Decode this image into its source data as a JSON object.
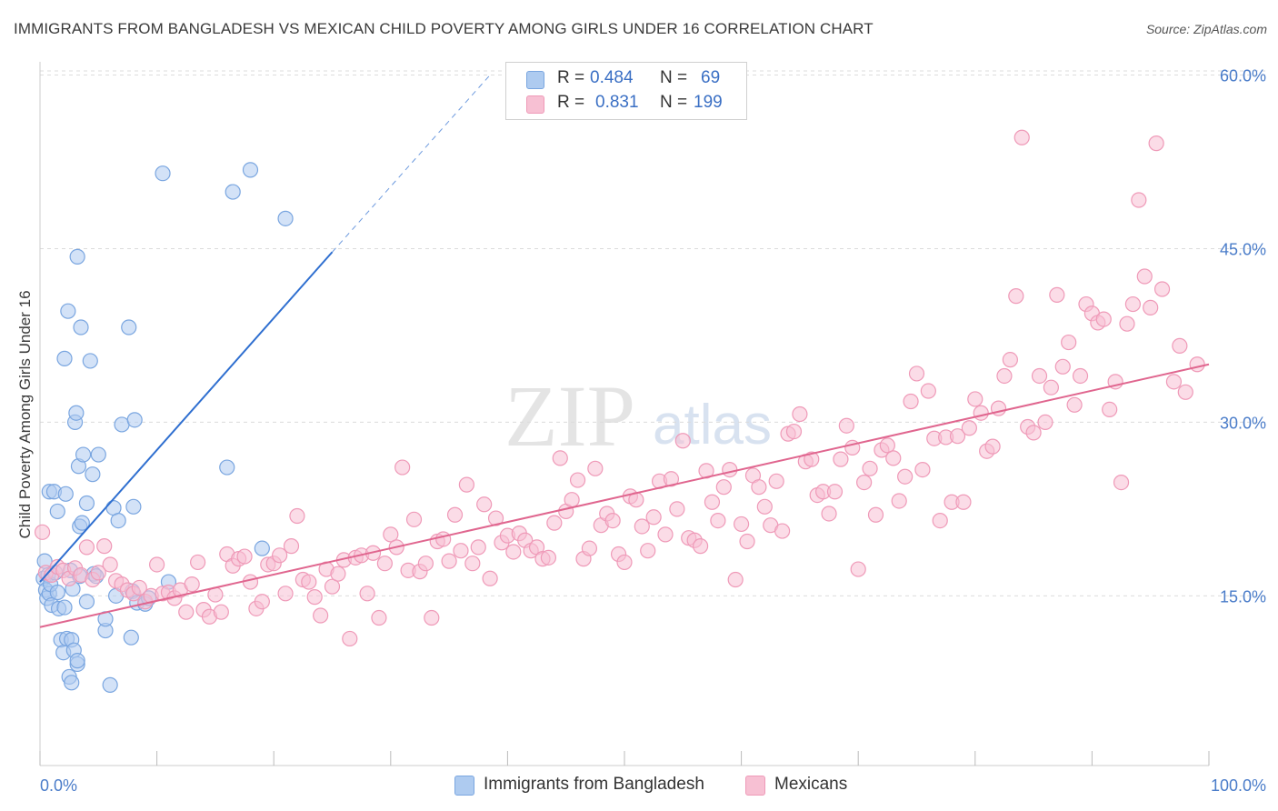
{
  "title": "IMMIGRANTS FROM BANGLADESH VS MEXICAN CHILD POVERTY AMONG GIRLS UNDER 16 CORRELATION CHART",
  "source": "Source: ZipAtlas.com",
  "watermark": {
    "zip": "ZIP",
    "atlas": "atlas"
  },
  "legend": {
    "rows": [
      {
        "r_label": "R =",
        "r_value": "0.484",
        "n_label": "N =",
        "n_value": "69"
      },
      {
        "r_label": "R =",
        "r_value": "0.831",
        "n_label": "N =",
        "n_value": "199"
      }
    ]
  },
  "bottom_legend": [
    {
      "label": "Immigrants from Bangladesh"
    },
    {
      "label": "Mexicans"
    }
  ],
  "colors": {
    "blue_fill": "#aecbf0",
    "blue_stroke": "#7aa6e0",
    "blue_line": "#2f6fd0",
    "pink_fill": "#f7c0d3",
    "pink_stroke": "#ef9ab8",
    "pink_line": "#e0668f",
    "grid": "#dcdcdc",
    "axis_text": "#4a7cc9"
  },
  "chart_data": {
    "type": "scatter",
    "title": "IMMIGRANTS FROM BANGLADESH VS MEXICAN CHILD POVERTY AMONG GIRLS UNDER 16 CORRELATION CHART",
    "xlabel": "",
    "ylabel": "Child Poverty Among Girls Under 16",
    "xlim": [
      0,
      100
    ],
    "ylim": [
      0,
      63
    ],
    "x_tick_labels": [
      "0.0%",
      "100.0%"
    ],
    "y_ticks": [
      15,
      30,
      45,
      60
    ],
    "y_tick_labels": [
      "15.0%",
      "30.0%",
      "45.0%",
      "60.0%"
    ],
    "grid": true,
    "legend_position": "top-center",
    "series": [
      {
        "name": "Immigrants from Bangladesh",
        "r": 0.484,
        "n": 69,
        "trend": {
          "x": [
            0,
            25
          ],
          "y": [
            16.2,
            44.7
          ],
          "extended_to": [
            38.5,
            60.0
          ]
        },
        "points": [
          [
            0.3,
            16.5
          ],
          [
            0.4,
            18.0
          ],
          [
            0.5,
            15.5
          ],
          [
            0.6,
            14.8
          ],
          [
            0.7,
            16.8
          ],
          [
            0.8,
            15.2
          ],
          [
            0.9,
            16.0
          ],
          [
            1.0,
            14.2
          ],
          [
            0.8,
            24.0
          ],
          [
            1.2,
            24.0
          ],
          [
            1.3,
            17.0
          ],
          [
            1.5,
            22.3
          ],
          [
            1.5,
            15.3
          ],
          [
            1.6,
            13.9
          ],
          [
            1.8,
            11.2
          ],
          [
            2.0,
            10.1
          ],
          [
            2.1,
            14.0
          ],
          [
            2.1,
            35.5
          ],
          [
            2.2,
            23.8
          ],
          [
            2.3,
            11.3
          ],
          [
            2.4,
            39.6
          ],
          [
            2.5,
            8.0
          ],
          [
            2.6,
            17.2
          ],
          [
            2.7,
            7.5
          ],
          [
            2.7,
            11.2
          ],
          [
            2.8,
            15.6
          ],
          [
            2.9,
            10.3
          ],
          [
            3.0,
            30.0
          ],
          [
            3.1,
            30.8
          ],
          [
            3.2,
            9.1
          ],
          [
            3.2,
            9.4
          ],
          [
            3.2,
            44.3
          ],
          [
            3.3,
            26.2
          ],
          [
            3.4,
            21.0
          ],
          [
            3.4,
            16.7
          ],
          [
            3.5,
            38.2
          ],
          [
            3.6,
            21.3
          ],
          [
            3.7,
            27.2
          ],
          [
            4.0,
            23.0
          ],
          [
            4.0,
            14.5
          ],
          [
            4.3,
            35.3
          ],
          [
            4.5,
            25.5
          ],
          [
            4.6,
            16.9
          ],
          [
            4.8,
            16.7
          ],
          [
            5.0,
            27.2
          ],
          [
            5.6,
            12.0
          ],
          [
            5.6,
            13.0
          ],
          [
            6.0,
            7.3
          ],
          [
            6.3,
            22.6
          ],
          [
            6.5,
            15.0
          ],
          [
            6.7,
            21.5
          ],
          [
            7.0,
            29.8
          ],
          [
            7.6,
            38.2
          ],
          [
            7.8,
            11.4
          ],
          [
            7.9,
            15.4
          ],
          [
            8.0,
            22.7
          ],
          [
            8.1,
            30.2
          ],
          [
            8.3,
            14.4
          ],
          [
            9.0,
            14.3
          ],
          [
            9.3,
            14.8
          ],
          [
            10.5,
            51.5
          ],
          [
            11.0,
            16.2
          ],
          [
            16.5,
            49.9
          ],
          [
            18.0,
            51.8
          ],
          [
            16.0,
            26.1
          ],
          [
            19.0,
            19.1
          ],
          [
            21.0,
            47.6
          ]
        ]
      },
      {
        "name": "Mexicans",
        "r": 0.831,
        "n": 199,
        "trend": {
          "x": [
            0,
            100
          ],
          "y": [
            12.3,
            35.0
          ]
        },
        "points": [
          [
            0.2,
            20.5
          ],
          [
            0.5,
            17.0
          ],
          [
            1.0,
            16.8
          ],
          [
            1.5,
            17.5
          ],
          [
            2.0,
            17.2
          ],
          [
            2.5,
            16.5
          ],
          [
            3.0,
            17.4
          ],
          [
            3.5,
            16.8
          ],
          [
            4.0,
            19.2
          ],
          [
            4.5,
            16.4
          ],
          [
            5.0,
            17.0
          ],
          [
            5.5,
            19.3
          ],
          [
            6.0,
            17.7
          ],
          [
            6.5,
            16.3
          ],
          [
            7.0,
            16.0
          ],
          [
            7.5,
            15.5
          ],
          [
            8.0,
            15.2
          ],
          [
            8.5,
            15.7
          ],
          [
            9.0,
            14.5
          ],
          [
            9.5,
            15.0
          ],
          [
            10.0,
            17.7
          ],
          [
            10.5,
            15.2
          ],
          [
            11.0,
            15.3
          ],
          [
            11.5,
            14.8
          ],
          [
            12.0,
            15.5
          ],
          [
            12.5,
            13.6
          ],
          [
            13.0,
            16.0
          ],
          [
            13.5,
            17.9
          ],
          [
            14.0,
            13.8
          ],
          [
            14.5,
            13.2
          ],
          [
            15.0,
            15.1
          ],
          [
            15.5,
            13.6
          ],
          [
            16.0,
            18.6
          ],
          [
            16.5,
            17.6
          ],
          [
            17.0,
            18.2
          ],
          [
            17.5,
            18.4
          ],
          [
            18.0,
            16.2
          ],
          [
            18.5,
            13.9
          ],
          [
            19.0,
            14.5
          ],
          [
            19.5,
            17.7
          ],
          [
            20.0,
            17.8
          ],
          [
            20.5,
            18.5
          ],
          [
            21.0,
            15.2
          ],
          [
            21.5,
            19.3
          ],
          [
            22.0,
            21.9
          ],
          [
            22.5,
            16.4
          ],
          [
            23.0,
            16.2
          ],
          [
            23.5,
            14.9
          ],
          [
            24.0,
            13.3
          ],
          [
            24.5,
            17.3
          ],
          [
            25.0,
            15.8
          ],
          [
            25.5,
            16.9
          ],
          [
            26.0,
            18.1
          ],
          [
            26.5,
            11.3
          ],
          [
            27.0,
            18.3
          ],
          [
            27.5,
            18.5
          ],
          [
            28.0,
            15.2
          ],
          [
            28.5,
            18.7
          ],
          [
            29.0,
            13.1
          ],
          [
            29.5,
            17.8
          ],
          [
            30.0,
            20.3
          ],
          [
            30.5,
            19.2
          ],
          [
            31.0,
            26.1
          ],
          [
            31.5,
            17.2
          ],
          [
            32.0,
            21.6
          ],
          [
            32.5,
            17.1
          ],
          [
            33.0,
            17.8
          ],
          [
            33.5,
            13.1
          ],
          [
            34.0,
            19.7
          ],
          [
            34.5,
            19.9
          ],
          [
            35.0,
            18.0
          ],
          [
            35.5,
            22.0
          ],
          [
            36.0,
            18.9
          ],
          [
            36.5,
            24.6
          ],
          [
            37.0,
            17.8
          ],
          [
            37.5,
            19.2
          ],
          [
            38.0,
            22.9
          ],
          [
            38.5,
            16.5
          ],
          [
            39.0,
            21.7
          ],
          [
            39.5,
            19.6
          ],
          [
            40.0,
            20.2
          ],
          [
            40.5,
            18.8
          ],
          [
            41.0,
            20.4
          ],
          [
            41.5,
            19.8
          ],
          [
            42.0,
            18.9
          ],
          [
            42.5,
            19.2
          ],
          [
            43.0,
            18.2
          ],
          [
            43.5,
            18.3
          ],
          [
            44.0,
            21.3
          ],
          [
            44.5,
            26.9
          ],
          [
            45.0,
            22.3
          ],
          [
            45.5,
            23.3
          ],
          [
            46.0,
            25.0
          ],
          [
            46.5,
            18.2
          ],
          [
            47.0,
            19.1
          ],
          [
            47.5,
            26.0
          ],
          [
            48.0,
            21.1
          ],
          [
            48.5,
            22.1
          ],
          [
            49.0,
            21.5
          ],
          [
            49.5,
            18.6
          ],
          [
            50.0,
            17.9
          ],
          [
            50.5,
            23.6
          ],
          [
            51.0,
            23.3
          ],
          [
            51.5,
            21.0
          ],
          [
            52.0,
            18.9
          ],
          [
            52.5,
            21.8
          ],
          [
            53.0,
            24.9
          ],
          [
            53.5,
            20.3
          ],
          [
            54.0,
            25.1
          ],
          [
            54.5,
            22.5
          ],
          [
            55.0,
            28.4
          ],
          [
            55.5,
            20.0
          ],
          [
            56.0,
            19.8
          ],
          [
            56.5,
            19.3
          ],
          [
            57.0,
            25.8
          ],
          [
            57.5,
            23.1
          ],
          [
            58.0,
            21.5
          ],
          [
            58.5,
            24.4
          ],
          [
            59.0,
            25.9
          ],
          [
            59.5,
            16.4
          ],
          [
            60.0,
            21.2
          ],
          [
            60.5,
            19.7
          ],
          [
            61.0,
            25.4
          ],
          [
            61.5,
            24.4
          ],
          [
            62.0,
            22.7
          ],
          [
            62.5,
            21.1
          ],
          [
            63.0,
            24.9
          ],
          [
            63.5,
            20.6
          ],
          [
            64.0,
            29.0
          ],
          [
            64.5,
            29.2
          ],
          [
            65.0,
            30.7
          ],
          [
            65.5,
            26.6
          ],
          [
            66.0,
            26.8
          ],
          [
            66.5,
            23.7
          ],
          [
            67.0,
            24.0
          ],
          [
            67.5,
            22.1
          ],
          [
            68.0,
            24.0
          ],
          [
            68.5,
            26.8
          ],
          [
            69.0,
            29.7
          ],
          [
            69.5,
            27.8
          ],
          [
            70.0,
            17.3
          ],
          [
            70.5,
            24.8
          ],
          [
            71.0,
            26.0
          ],
          [
            71.5,
            22.0
          ],
          [
            72.0,
            27.6
          ],
          [
            72.5,
            28.0
          ],
          [
            73.0,
            26.9
          ],
          [
            73.5,
            23.2
          ],
          [
            74.0,
            25.3
          ],
          [
            74.5,
            31.8
          ],
          [
            75.0,
            34.2
          ],
          [
            75.5,
            25.9
          ],
          [
            76.0,
            32.7
          ],
          [
            76.5,
            28.6
          ],
          [
            77.0,
            21.5
          ],
          [
            77.5,
            28.7
          ],
          [
            78.0,
            23.1
          ],
          [
            78.5,
            28.8
          ],
          [
            79.0,
            23.1
          ],
          [
            79.5,
            29.5
          ],
          [
            80.0,
            32.0
          ],
          [
            80.5,
            30.8
          ],
          [
            81.0,
            27.5
          ],
          [
            81.5,
            27.9
          ],
          [
            82.0,
            31.2
          ],
          [
            82.5,
            34.0
          ],
          [
            83.0,
            35.4
          ],
          [
            83.5,
            40.9
          ],
          [
            84.0,
            54.6
          ],
          [
            84.5,
            29.6
          ],
          [
            85.0,
            29.1
          ],
          [
            85.5,
            34.0
          ],
          [
            86.0,
            30.0
          ],
          [
            86.5,
            33.0
          ],
          [
            87.0,
            41.0
          ],
          [
            87.5,
            34.8
          ],
          [
            88.0,
            36.9
          ],
          [
            88.5,
            31.5
          ],
          [
            89.0,
            34.0
          ],
          [
            89.5,
            40.2
          ],
          [
            90.0,
            39.4
          ],
          [
            90.5,
            38.6
          ],
          [
            91.0,
            38.9
          ],
          [
            91.5,
            31.1
          ],
          [
            92.0,
            33.5
          ],
          [
            92.5,
            24.8
          ],
          [
            93.0,
            38.5
          ],
          [
            93.5,
            40.2
          ],
          [
            94.0,
            49.2
          ],
          [
            94.5,
            42.6
          ],
          [
            95.0,
            39.9
          ],
          [
            95.5,
            54.1
          ],
          [
            96.0,
            41.5
          ],
          [
            97.0,
            33.5
          ],
          [
            97.5,
            36.6
          ],
          [
            98.0,
            32.6
          ],
          [
            99.0,
            35.0
          ]
        ]
      }
    ]
  }
}
